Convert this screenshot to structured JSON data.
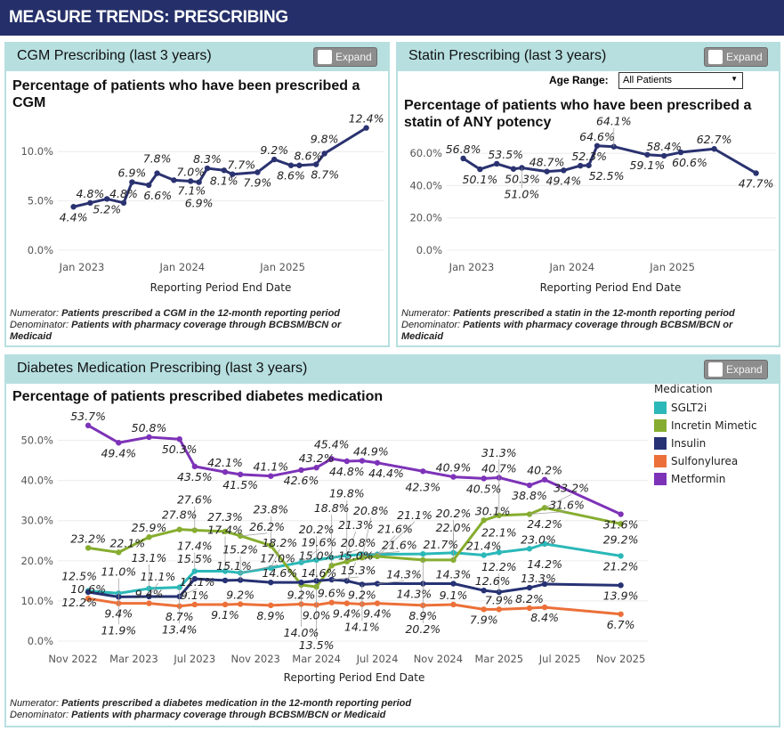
{
  "header": {
    "title": "MEASURE TRENDS: PRESCRIBING"
  },
  "expand_label": "Expand",
  "cgm": {
    "panel_title": "CGM Prescribing (last 3 years)",
    "footnote": {
      "num_label": "Numerator:",
      "num_text": "Patients prescribed a CGM in the 12-month reporting period",
      "den_label": "Denominator:",
      "den_text": "Patients with pharmacy coverage through BCBSM/BCN or Medicaid"
    }
  },
  "statin": {
    "panel_title": "Statin Prescribing (last 3 years)",
    "age_range": {
      "label": "Age Range:",
      "value": "All Patients"
    },
    "footnote": {
      "num_label": "Numerator:",
      "num_text": "Patients prescribed a statin in the 12-month reporting period",
      "den_label": "Denominator:",
      "den_text": "Patients with pharmacy coverage through BCBSM/BCN or Medicaid"
    }
  },
  "diabetes": {
    "panel_title": "Diabetes Medication Prescribing (last 3 years)",
    "footnote": {
      "num_label": "Numerator:",
      "num_text": "Patients prescribed a diabetes medication in the 12-month reporting period",
      "den_label": "Denominator:",
      "den_text": "Patients with pharmacy coverage through BCBSM/BCN or Medicaid"
    }
  },
  "chart_data": [
    {
      "type": "line",
      "title": "Percentage of patients who have been prescribed a CGM",
      "xlabel": "Reporting Period End Date",
      "ylabel": "",
      "x_ticks": [
        "Jan 2023",
        "Jan 2024",
        "Jan 2025"
      ],
      "y_ticks": [
        "0.0%",
        "5.0%",
        "10.0%"
      ],
      "ylim": [
        0,
        13
      ],
      "grid": true,
      "x": [
        "2022-12",
        "2023-02",
        "2023-04",
        "2023-06",
        "2023-07",
        "2023-09",
        "2023-10",
        "2023-12",
        "2024-02",
        "2024-03",
        "2024-04",
        "2024-06",
        "2024-07",
        "2024-10",
        "2024-12",
        "2025-02",
        "2025-03",
        "2025-05",
        "2025-06",
        "2025-11"
      ],
      "series": [
        {
          "color": "#2a3270",
          "values": [
            4.4,
            4.8,
            5.2,
            4.8,
            6.9,
            6.6,
            7.8,
            7.1,
            7.0,
            6.9,
            8.3,
            8.1,
            7.7,
            7.9,
            9.2,
            8.6,
            8.6,
            8.7,
            9.8,
            12.4
          ]
        }
      ]
    },
    {
      "type": "line",
      "title": "Percentage of patients who have been prescribed a statin of ANY potency",
      "xlabel": "Reporting Period End Date",
      "ylabel": "",
      "x_ticks": [
        "Jan 2023",
        "Jan 2024",
        "Jan 2025"
      ],
      "y_ticks": [
        "0.0%",
        "20.0%",
        "40.0%",
        "60.0%"
      ],
      "ylim": [
        0,
        70
      ],
      "grid": true,
      "x": [
        "2022-12",
        "2023-02",
        "2023-04",
        "2023-06",
        "2023-07",
        "2023-10",
        "2023-12",
        "2024-02",
        "2024-03",
        "2024-04",
        "2024-06",
        "2024-10",
        "2024-12",
        "2025-02",
        "2025-06",
        "2025-11"
      ],
      "series": [
        {
          "color": "#2a3270",
          "values": [
            56.8,
            50.1,
            53.5,
            50.3,
            51.0,
            48.7,
            49.4,
            52.3,
            52.5,
            64.6,
            64.1,
            59.1,
            58.4,
            60.6,
            62.7,
            47.7
          ]
        }
      ]
    },
    {
      "type": "line",
      "title": "Percentage of patients prescribed diabetes medication",
      "xlabel": "Reporting Period End Date",
      "ylabel": "",
      "x_ticks": [
        "Nov 2022",
        "Mar 2023",
        "Jul 2023",
        "Nov 2023",
        "Mar 2024",
        "Jul 2024",
        "Nov 2024",
        "Mar 2025",
        "Jul 2025",
        "Nov 2025"
      ],
      "y_ticks": [
        "0.0%",
        "10.0%",
        "20.0%",
        "30.0%",
        "40.0%",
        "50.0%"
      ],
      "ylim": [
        0,
        55
      ],
      "grid": true,
      "legend": {
        "title": "Medication",
        "placement": "right"
      },
      "x": [
        "2022-12",
        "2023-02",
        "2023-04",
        "2023-06",
        "2023-07",
        "2023-09",
        "2023-10",
        "2023-12",
        "2024-02",
        "2024-03",
        "2024-04",
        "2024-05",
        "2024-06",
        "2024-07",
        "2024-10",
        "2024-12",
        "2025-02",
        "2025-03",
        "2025-05",
        "2025-06",
        "2025-11"
      ],
      "series": [
        {
          "name": "SGLT2i",
          "color": "#2bb8b8",
          "values": [
            12.5,
            11.9,
            13.1,
            13.4,
            17.4,
            17.4,
            17.0,
            18.2,
            19.6,
            20.2,
            20.8,
            21.3,
            21.6,
            21.6,
            21.7,
            22.0,
            21.4,
            22.1,
            23.0,
            24.2,
            21.2
          ]
        },
        {
          "name": "Incretin Mimetic",
          "color": "#86ad2f",
          "values": [
            23.2,
            22.1,
            25.9,
            27.8,
            27.6,
            27.3,
            26.2,
            23.8,
            14.0,
            13.5,
            18.8,
            19.8,
            20.8,
            21.1,
            20.2,
            20.2,
            30.1,
            31.3,
            31.6,
            33.2,
            29.2
          ]
        },
        {
          "name": "Insulin",
          "color": "#263273",
          "values": [
            12.2,
            11.0,
            11.1,
            11.1,
            15.5,
            15.1,
            15.2,
            14.6,
            14.6,
            15.0,
            15.3,
            15.0,
            14.1,
            14.3,
            14.3,
            14.3,
            12.6,
            12.2,
            13.3,
            14.2,
            13.9
          ]
        },
        {
          "name": "Sulfonylurea",
          "color": "#ec7039",
          "values": [
            10.6,
            9.4,
            9.4,
            8.7,
            9.1,
            9.1,
            9.2,
            8.9,
            9.2,
            9.0,
            9.6,
            9.4,
            9.2,
            9.4,
            8.9,
            9.1,
            7.9,
            7.9,
            8.2,
            8.4,
            6.7
          ]
        },
        {
          "name": "Metformin",
          "color": "#7d33b8",
          "values": [
            53.7,
            49.4,
            50.8,
            50.3,
            43.5,
            42.1,
            41.5,
            41.1,
            42.6,
            43.2,
            45.4,
            44.8,
            44.9,
            44.4,
            42.3,
            40.9,
            40.5,
            40.7,
            38.8,
            40.2,
            31.6
          ]
        }
      ]
    }
  ]
}
